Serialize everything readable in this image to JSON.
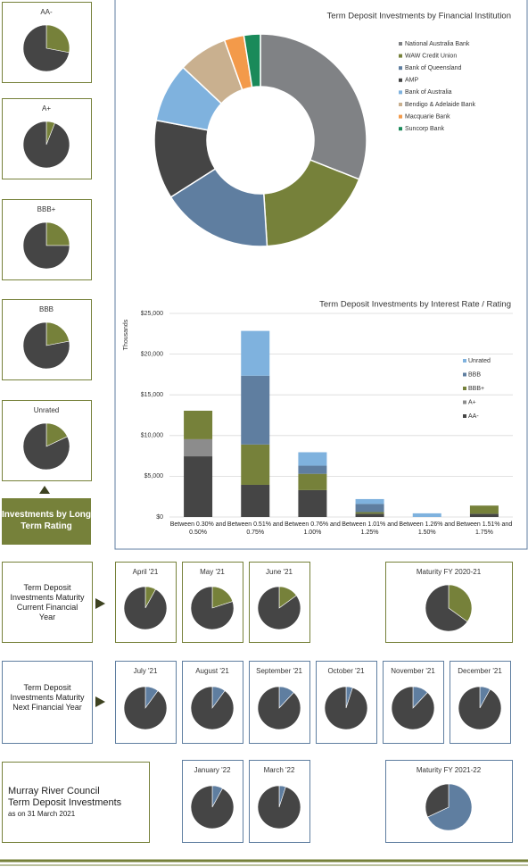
{
  "panels": {
    "rating_label": "Investments by Long Term Rating",
    "current_fy_label": "Term Deposit Investments Maturity Current Financial Year",
    "next_fy_label": "Term Deposit Investments Maturity Next Financial Year",
    "council": [
      "Murray River Council",
      "Term Deposit Investments",
      "as on 31 March 2021"
    ]
  },
  "chart_data": [
    {
      "type": "pie",
      "title": "AA-",
      "values": [
        28,
        72
      ],
      "colors": [
        "#76813a",
        "#454545"
      ]
    },
    {
      "type": "pie",
      "title": "A+",
      "values": [
        6,
        94
      ],
      "colors": [
        "#76813a",
        "#454545"
      ]
    },
    {
      "type": "pie",
      "title": "BBB+",
      "values": [
        25,
        75
      ],
      "colors": [
        "#76813a",
        "#454545"
      ]
    },
    {
      "type": "pie",
      "title": "BBB",
      "values": [
        22,
        78
      ],
      "colors": [
        "#76813a",
        "#454545"
      ]
    },
    {
      "type": "pie",
      "title": "Unrated",
      "values": [
        18,
        82
      ],
      "colors": [
        "#76813a",
        "#454545"
      ]
    },
    {
      "type": "pie",
      "title": "April '21",
      "values": [
        8,
        92
      ],
      "colors": [
        "#76813a",
        "#454545"
      ]
    },
    {
      "type": "pie",
      "title": "May '21",
      "values": [
        20,
        80
      ],
      "colors": [
        "#76813a",
        "#454545"
      ]
    },
    {
      "type": "pie",
      "title": "June '21",
      "values": [
        15,
        85
      ],
      "colors": [
        "#76813a",
        "#454545"
      ]
    },
    {
      "type": "pie",
      "title": "Maturity FY 2020-21",
      "values": [
        35,
        65
      ],
      "colors": [
        "#76813a",
        "#454545"
      ]
    },
    {
      "type": "pie",
      "title": "July '21",
      "values": [
        10,
        90
      ],
      "colors": [
        "#5f7ea0",
        "#454545"
      ]
    },
    {
      "type": "pie",
      "title": "August '21",
      "values": [
        10,
        90
      ],
      "colors": [
        "#5f7ea0",
        "#454545"
      ]
    },
    {
      "type": "pie",
      "title": "September '21",
      "values": [
        12,
        88
      ],
      "colors": [
        "#5f7ea0",
        "#454545"
      ]
    },
    {
      "type": "pie",
      "title": "October '21",
      "values": [
        5,
        95
      ],
      "colors": [
        "#5f7ea0",
        "#454545"
      ]
    },
    {
      "type": "pie",
      "title": "November '21",
      "values": [
        12,
        88
      ],
      "colors": [
        "#5f7ea0",
        "#454545"
      ]
    },
    {
      "type": "pie",
      "title": "December '21",
      "values": [
        8,
        92
      ],
      "colors": [
        "#5f7ea0",
        "#454545"
      ]
    },
    {
      "type": "pie",
      "title": "January '22",
      "values": [
        8,
        92
      ],
      "colors": [
        "#5f7ea0",
        "#454545"
      ]
    },
    {
      "type": "pie",
      "title": "March '22",
      "values": [
        5,
        95
      ],
      "colors": [
        "#5f7ea0",
        "#454545"
      ]
    },
    {
      "type": "pie",
      "title": "Maturity FY 2021-22",
      "values": [
        68,
        32
      ],
      "colors": [
        "#5f7ea0",
        "#454545"
      ]
    },
    {
      "type": "donut",
      "title": "Term Deposit Investments by Financial Institution",
      "categories": [
        "National Australia Bank",
        "WAW Credit Union",
        "Bank of Queensland",
        "AMP",
        "Bank of Australia",
        "Bendigo & Adelaide Bank",
        "Macquarie Bank",
        "Suncorp Bank"
      ],
      "values": [
        31,
        18,
        17,
        12,
        9,
        7.5,
        3,
        2.5
      ],
      "colors": [
        "#808285",
        "#76813a",
        "#5f7ea0",
        "#454545",
        "#7fb2de",
        "#c9b08f",
        "#f39a4a",
        "#1a8a5a"
      ],
      "legend": "right"
    },
    {
      "type": "bar",
      "stacked": true,
      "title": "Term Deposit Investments by Interest Rate / Rating",
      "y_label": "Thousands",
      "categories": [
        "Between 0.30% and 0.50%",
        "Between 0.51% and 0.75%",
        "Between 0.76% and 1.00%",
        "Between 1.01% and 1.25%",
        "Between 1.26% and 1.50%",
        "Between 1.51% and 1.75%"
      ],
      "series": [
        {
          "name": "AA-",
          "color": "#454545",
          "values": [
            7450,
            3950,
            3300,
            400,
            0,
            400
          ]
        },
        {
          "name": "A+",
          "color": "#8c8c8c",
          "values": [
            2100,
            0,
            0,
            0,
            0,
            0
          ]
        },
        {
          "name": "BBB+",
          "color": "#76813a",
          "values": [
            3500,
            4950,
            2000,
            200,
            0,
            1000
          ]
        },
        {
          "name": "BBB",
          "color": "#5f7ea0",
          "values": [
            0,
            8450,
            1000,
            1000,
            0,
            0
          ]
        },
        {
          "name": "Unrated",
          "color": "#7fb2de",
          "values": [
            0,
            5500,
            1650,
            600,
            450,
            0
          ]
        }
      ],
      "ylim": [
        0,
        25000
      ],
      "yticks": [
        {
          "value": 0,
          "label": "$0"
        },
        {
          "value": 5000,
          "label": "$5,000"
        },
        {
          "value": 10000,
          "label": "$10,000"
        },
        {
          "value": 15000,
          "label": "$15,000"
        },
        {
          "value": 20000,
          "label": "$20,000"
        },
        {
          "value": 25000,
          "label": "$25,000"
        }
      ],
      "grid": true,
      "legend": "right"
    }
  ]
}
